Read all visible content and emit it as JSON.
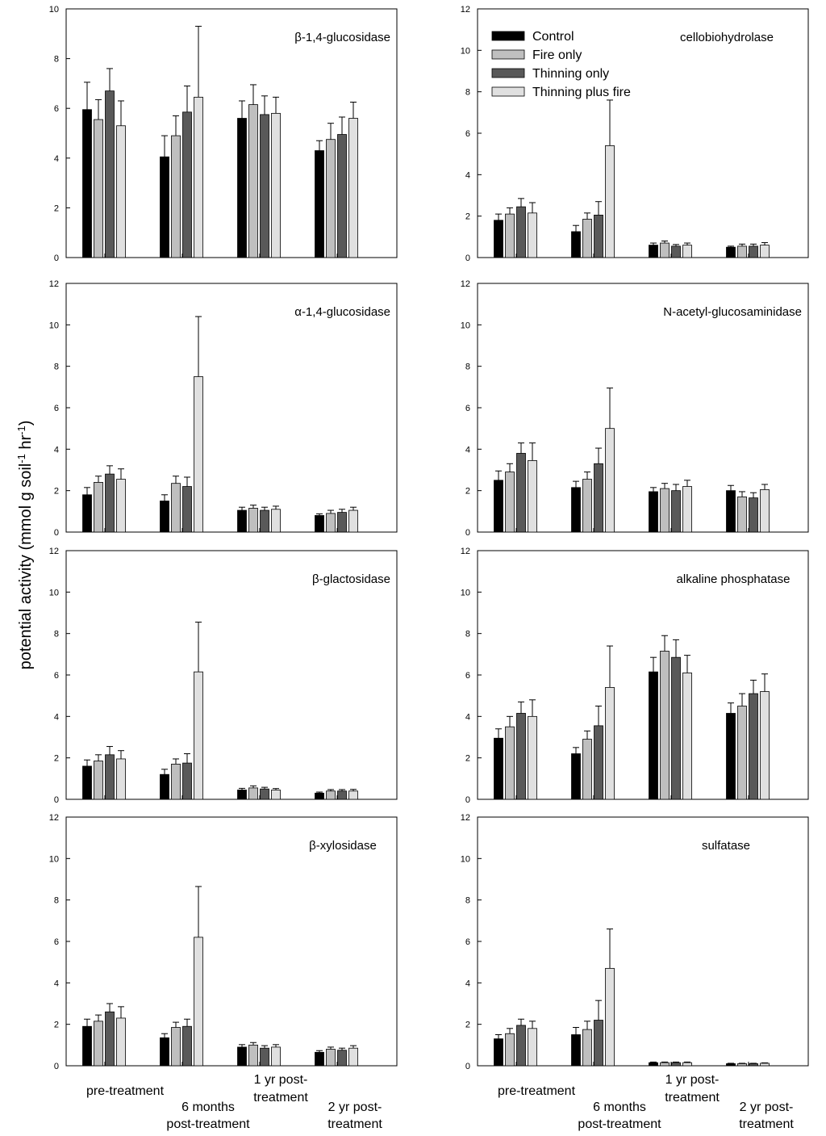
{
  "figure": {
    "ylabel": "potential activity (mmol g soil",
    "ylabel_sup1": "-1",
    "ylabel_mid": " hr",
    "ylabel_sup2": "-1",
    "ylabel_end": ")",
    "group_labels": [
      [
        "pre-treatment"
      ],
      [
        "6 months",
        "post-treatment"
      ],
      [
        "1 yr post-",
        "treatment"
      ],
      [
        "2 yr post-",
        "treatment"
      ]
    ]
  },
  "legend": {
    "placement": "top-left of cellobiohydrolase panel",
    "items": [
      {
        "label": "Control",
        "color": "#000000"
      },
      {
        "label": "Fire only",
        "color": "#bfbfbf"
      },
      {
        "label": "Thinning only",
        "color": "#595959"
      },
      {
        "label": "Thinning plus fire",
        "color": "#e0e0e0"
      }
    ]
  },
  "chart_data": [
    {
      "type": "bar",
      "title": "β-1,4-glucosidase",
      "categories": [
        "pre-treatment",
        "6 months post-treatment",
        "1 yr post-treatment",
        "2 yr post-treatment"
      ],
      "ylim": [
        0,
        10
      ],
      "yticks": [
        0,
        2,
        4,
        6,
        8,
        10
      ],
      "series": [
        {
          "name": "Control",
          "values": [
            5.95,
            4.05,
            5.6,
            4.3
          ],
          "errors": [
            1.1,
            0.85,
            0.7,
            0.4
          ]
        },
        {
          "name": "Fire only",
          "values": [
            5.55,
            4.9,
            6.15,
            4.75
          ],
          "errors": [
            0.8,
            0.8,
            0.8,
            0.65
          ]
        },
        {
          "name": "Thinning only",
          "values": [
            6.7,
            5.85,
            5.75,
            4.95
          ],
          "errors": [
            0.9,
            1.05,
            0.75,
            0.7
          ]
        },
        {
          "name": "Thinning plus fire",
          "values": [
            5.3,
            6.45,
            5.8,
            5.6
          ],
          "errors": [
            1.0,
            2.85,
            0.65,
            0.65
          ]
        }
      ]
    },
    {
      "type": "bar",
      "title": "cellobiohydrolase",
      "categories": [
        "pre-treatment",
        "6 months post-treatment",
        "1 yr post-treatment",
        "2 yr post-treatment"
      ],
      "ylim": [
        0,
        12
      ],
      "yticks": [
        0,
        2,
        4,
        6,
        8,
        10,
        12
      ],
      "series": [
        {
          "name": "Control",
          "values": [
            1.8,
            1.25,
            0.6,
            0.5
          ],
          "errors": [
            0.3,
            0.3,
            0.1,
            0.05
          ]
        },
        {
          "name": "Fire only",
          "values": [
            2.1,
            1.85,
            0.7,
            0.55
          ],
          "errors": [
            0.3,
            0.3,
            0.1,
            0.1
          ]
        },
        {
          "name": "Thinning only",
          "values": [
            2.45,
            2.05,
            0.55,
            0.55
          ],
          "errors": [
            0.4,
            0.65,
            0.08,
            0.1
          ]
        },
        {
          "name": "Thinning plus fire",
          "values": [
            2.15,
            5.4,
            0.6,
            0.6
          ],
          "errors": [
            0.5,
            2.2,
            0.1,
            0.12
          ]
        }
      ]
    },
    {
      "type": "bar",
      "title": "α-1,4-glucosidase",
      "categories": [
        "pre-treatment",
        "6 months post-treatment",
        "1 yr post-treatment",
        "2 yr post-treatment"
      ],
      "ylim": [
        0,
        12
      ],
      "yticks": [
        0,
        2,
        4,
        6,
        8,
        10,
        12
      ],
      "series": [
        {
          "name": "Control",
          "values": [
            1.8,
            1.5,
            1.05,
            0.8
          ],
          "errors": [
            0.35,
            0.3,
            0.15,
            0.08
          ]
        },
        {
          "name": "Fire only",
          "values": [
            2.4,
            2.35,
            1.15,
            0.9
          ],
          "errors": [
            0.3,
            0.35,
            0.15,
            0.15
          ]
        },
        {
          "name": "Thinning only",
          "values": [
            2.8,
            2.2,
            1.05,
            0.95
          ],
          "errors": [
            0.4,
            0.45,
            0.15,
            0.15
          ]
        },
        {
          "name": "Thinning plus fire",
          "values": [
            2.55,
            7.5,
            1.1,
            1.05
          ],
          "errors": [
            0.5,
            2.9,
            0.15,
            0.15
          ]
        }
      ]
    },
    {
      "type": "bar",
      "title": "N-acetyl-glucosaminidase",
      "categories": [
        "pre-treatment",
        "6 months post-treatment",
        "1 yr post-treatment",
        "2 yr post-treatment"
      ],
      "ylim": [
        0,
        12
      ],
      "yticks": [
        0,
        2,
        4,
        6,
        8,
        10,
        12
      ],
      "series": [
        {
          "name": "Control",
          "values": [
            2.5,
            2.15,
            1.95,
            2.0
          ],
          "errors": [
            0.45,
            0.3,
            0.2,
            0.25
          ]
        },
        {
          "name": "Fire only",
          "values": [
            2.9,
            2.55,
            2.1,
            1.7
          ],
          "errors": [
            0.4,
            0.35,
            0.25,
            0.25
          ]
        },
        {
          "name": "Thinning only",
          "values": [
            3.8,
            3.3,
            2.0,
            1.65
          ],
          "errors": [
            0.5,
            0.75,
            0.3,
            0.25
          ]
        },
        {
          "name": "Thinning plus fire",
          "values": [
            3.45,
            5.0,
            2.2,
            2.05
          ],
          "errors": [
            0.85,
            1.95,
            0.3,
            0.25
          ]
        }
      ]
    },
    {
      "type": "bar",
      "title": "β-glactosidase",
      "categories": [
        "pre-treatment",
        "6 months post-treatment",
        "1 yr post-treatment",
        "2 yr post-treatment"
      ],
      "ylim": [
        0,
        12
      ],
      "yticks": [
        0,
        2,
        4,
        6,
        8,
        10,
        12
      ],
      "series": [
        {
          "name": "Control",
          "values": [
            1.6,
            1.2,
            0.45,
            0.3
          ],
          "errors": [
            0.3,
            0.25,
            0.08,
            0.05
          ]
        },
        {
          "name": "Fire only",
          "values": [
            1.85,
            1.7,
            0.55,
            0.4
          ],
          "errors": [
            0.3,
            0.25,
            0.1,
            0.07
          ]
        },
        {
          "name": "Thinning only",
          "values": [
            2.15,
            1.75,
            0.5,
            0.4
          ],
          "errors": [
            0.4,
            0.45,
            0.08,
            0.07
          ]
        },
        {
          "name": "Thinning plus fire",
          "values": [
            1.95,
            6.15,
            0.45,
            0.4
          ],
          "errors": [
            0.4,
            2.4,
            0.07,
            0.08
          ]
        }
      ]
    },
    {
      "type": "bar",
      "title": "alkaline phosphatase",
      "categories": [
        "pre-treatment",
        "6 months post-treatment",
        "1 yr post-treatment",
        "2 yr post-treatment"
      ],
      "ylim": [
        0,
        12
      ],
      "yticks": [
        0,
        2,
        4,
        6,
        8,
        10,
        12
      ],
      "series": [
        {
          "name": "Control",
          "values": [
            2.95,
            2.2,
            6.15,
            4.15
          ],
          "errors": [
            0.45,
            0.3,
            0.7,
            0.5
          ]
        },
        {
          "name": "Fire only",
          "values": [
            3.5,
            2.9,
            7.15,
            4.5
          ],
          "errors": [
            0.5,
            0.4,
            0.75,
            0.6
          ]
        },
        {
          "name": "Thinning only",
          "values": [
            4.15,
            3.55,
            6.85,
            5.1
          ],
          "errors": [
            0.55,
            0.95,
            0.85,
            0.65
          ]
        },
        {
          "name": "Thinning plus fire",
          "values": [
            4.0,
            5.4,
            6.1,
            5.2
          ],
          "errors": [
            0.8,
            2.0,
            0.85,
            0.85
          ]
        }
      ]
    },
    {
      "type": "bar",
      "title": "β-xylosidase",
      "categories": [
        "pre-treatment",
        "6 months post-treatment",
        "1 yr post-treatment",
        "2 yr post-treatment"
      ],
      "ylim": [
        0,
        12
      ],
      "yticks": [
        0,
        2,
        4,
        6,
        8,
        10,
        12
      ],
      "series": [
        {
          "name": "Control",
          "values": [
            1.9,
            1.35,
            0.9,
            0.65
          ],
          "errors": [
            0.35,
            0.2,
            0.12,
            0.08
          ]
        },
        {
          "name": "Fire only",
          "values": [
            2.15,
            1.85,
            1.0,
            0.8
          ],
          "errors": [
            0.3,
            0.25,
            0.12,
            0.1
          ]
        },
        {
          "name": "Thinning only",
          "values": [
            2.6,
            1.9,
            0.85,
            0.75
          ],
          "errors": [
            0.4,
            0.35,
            0.12,
            0.1
          ]
        },
        {
          "name": "Thinning plus fire",
          "values": [
            2.3,
            6.2,
            0.9,
            0.85
          ],
          "errors": [
            0.55,
            2.45,
            0.12,
            0.12
          ]
        }
      ]
    },
    {
      "type": "bar",
      "title": "sulfatase",
      "categories": [
        "pre-treatment",
        "6 months post-treatment",
        "1 yr post-treatment",
        "2 yr post-treatment"
      ],
      "ylim": [
        0,
        12
      ],
      "yticks": [
        0,
        2,
        4,
        6,
        8,
        10,
        12
      ],
      "series": [
        {
          "name": "Control",
          "values": [
            1.3,
            1.5,
            0.15,
            0.1
          ],
          "errors": [
            0.2,
            0.35,
            0.03,
            0.02
          ]
        },
        {
          "name": "Fire only",
          "values": [
            1.55,
            1.75,
            0.15,
            0.1
          ],
          "errors": [
            0.25,
            0.4,
            0.03,
            0.02
          ]
        },
        {
          "name": "Thinning only",
          "values": [
            1.95,
            2.2,
            0.15,
            0.1
          ],
          "errors": [
            0.3,
            0.95,
            0.03,
            0.02
          ]
        },
        {
          "name": "Thinning plus fire",
          "values": [
            1.8,
            4.7,
            0.15,
            0.12
          ],
          "errors": [
            0.35,
            1.9,
            0.03,
            0.02
          ]
        }
      ]
    }
  ]
}
